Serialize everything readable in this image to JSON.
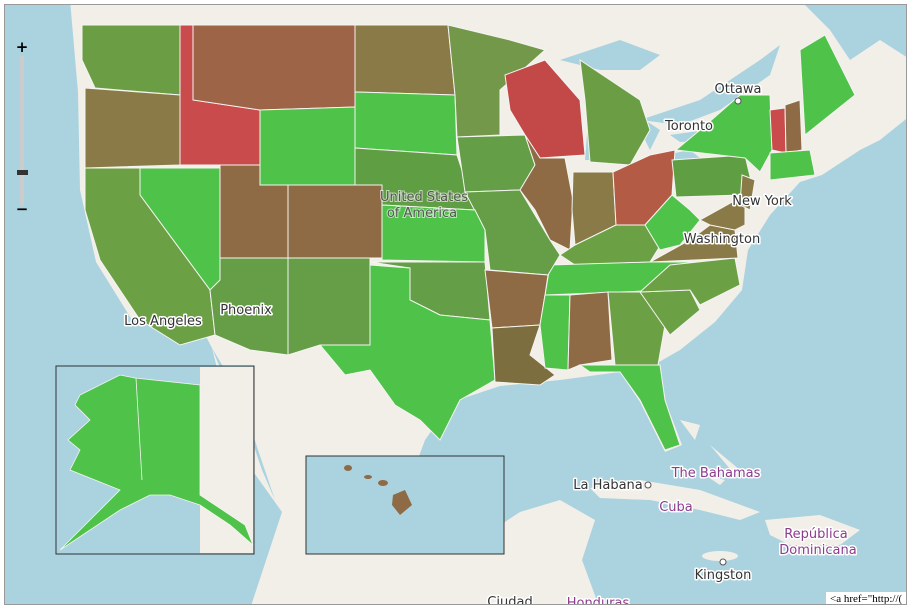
{
  "zoom_control": {
    "zoom_in": "+",
    "zoom_out": "−"
  },
  "place_labels": {
    "ottawa": "Ottawa",
    "toronto": "Toronto",
    "country_us_line1": "United States",
    "country_us_line2": "of America",
    "new_york": "New York",
    "washington": "Washington",
    "los_angeles": "Los Angeles",
    "phoenix": "Phoenix",
    "the_bahamas": "The Bahamas",
    "la_habana": "La Habana",
    "cuba": "Cuba",
    "republica_line1": "República",
    "republica_line2": "Dominicana",
    "kingston": "Kingston",
    "ciudad": "Ciudad",
    "honduras": "Honduras"
  },
  "attribution": "<a href=\"http://("
}
